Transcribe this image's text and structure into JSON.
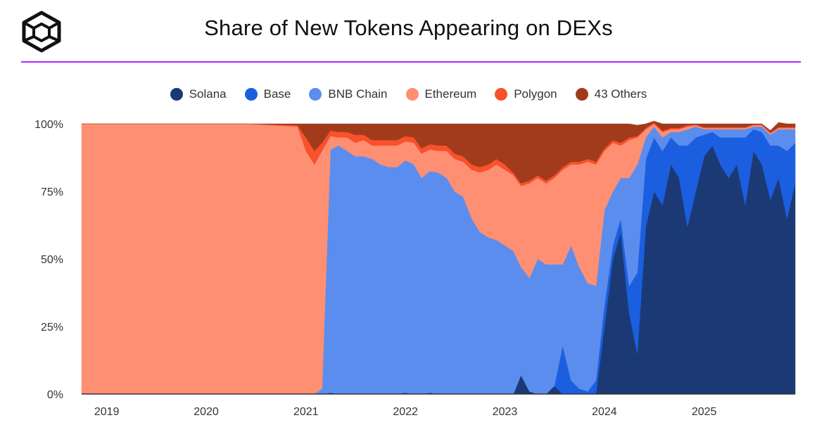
{
  "title": "Share of New Tokens Appearing on DEXs",
  "icons": {
    "logo": "cube-logo-icon"
  },
  "chart_data": {
    "type": "area",
    "stacked": true,
    "normalized": true,
    "title": "Share of New Tokens Appearing on DEXs",
    "xlabel": "",
    "ylabel": "",
    "ylim": [
      0,
      100
    ],
    "y_ticks": [
      "0%",
      "25%",
      "50%",
      "75%",
      "100%"
    ],
    "x_ticks": [
      "2019",
      "2020",
      "2021",
      "2022",
      "2023",
      "2024",
      "2025"
    ],
    "legend_position": "top-center",
    "grid": false,
    "x": [
      "2018-10",
      "2019-01",
      "2019-06",
      "2020-01",
      "2020-06",
      "2020-12",
      "2021-01",
      "2021-02",
      "2021-03",
      "2021-04",
      "2021-05",
      "2021-06",
      "2021-07",
      "2021-08",
      "2021-09",
      "2021-10",
      "2021-11",
      "2021-12",
      "2022-01",
      "2022-02",
      "2022-03",
      "2022-04",
      "2022-05",
      "2022-06",
      "2022-07",
      "2022-08",
      "2022-09",
      "2022-10",
      "2022-11",
      "2022-12",
      "2023-01",
      "2023-02",
      "2023-03",
      "2023-04",
      "2023-05",
      "2023-06",
      "2023-07",
      "2023-08",
      "2023-09",
      "2023-10",
      "2023-11",
      "2023-12",
      "2024-01",
      "2024-02",
      "2024-03",
      "2024-04",
      "2024-05",
      "2024-06",
      "2024-07",
      "2024-08",
      "2024-09",
      "2024-10",
      "2024-11",
      "2024-12",
      "2025-01",
      "2025-02",
      "2025-03",
      "2025-04",
      "2025-05",
      "2025-06",
      "2025-07",
      "2025-08",
      "2025-09",
      "2025-10",
      "2025-11",
      "2025-12"
    ],
    "series": [
      {
        "name": "Solana",
        "color": "#1b3a75",
        "values": [
          0,
          0,
          0,
          0,
          0,
          0,
          0,
          0,
          0,
          0.5,
          0,
          0,
          0,
          0,
          0,
          0,
          0,
          0,
          0.5,
          0,
          0,
          0.5,
          0,
          0,
          0,
          0,
          0,
          0,
          0,
          0,
          0,
          0,
          7,
          1,
          0,
          0,
          3,
          0,
          0,
          0,
          0,
          0,
          25,
          50,
          60,
          30,
          15,
          62,
          75,
          70,
          85,
          80,
          62,
          75,
          88,
          92,
          85,
          80,
          85,
          70,
          90,
          85,
          72,
          80,
          65,
          78
        ]
      },
      {
        "name": "Base",
        "color": "#1b5fe0",
        "values": [
          0,
          0,
          0,
          0,
          0,
          0,
          0,
          0,
          0,
          0,
          0,
          0,
          0,
          0,
          0,
          0,
          0,
          0,
          0,
          0,
          0,
          0,
          0,
          0,
          0,
          0,
          0,
          0,
          0,
          0,
          0,
          0,
          0,
          0,
          0,
          0,
          0,
          18,
          5,
          2,
          1,
          5,
          8,
          5,
          5,
          10,
          30,
          25,
          20,
          20,
          10,
          12,
          30,
          20,
          8,
          5,
          10,
          15,
          10,
          25,
          8,
          12,
          20,
          12,
          25,
          15
        ]
      },
      {
        "name": "BNB Chain",
        "color": "#5b8def",
        "values": [
          0,
          0,
          0,
          0,
          0,
          0,
          0,
          0,
          2,
          90,
          92,
          90,
          88,
          88,
          87,
          85,
          84,
          84,
          86,
          85,
          80,
          82,
          82,
          80,
          75,
          73,
          65,
          60,
          58,
          57,
          55,
          53,
          40,
          42,
          50,
          48,
          45,
          30,
          50,
          45,
          40,
          35,
          35,
          20,
          15,
          40,
          40,
          8,
          4,
          5,
          2,
          5,
          6,
          4,
          2,
          1,
          3,
          3,
          3,
          3,
          1,
          2,
          4,
          6,
          8,
          5
        ]
      },
      {
        "name": "Ethereum",
        "color": "#ff8f73",
        "values": [
          100,
          100,
          100,
          100,
          100,
          99,
          90,
          85,
          88,
          5,
          3,
          5,
          5,
          6,
          5,
          7,
          8,
          8,
          7,
          8,
          9,
          8,
          8,
          10,
          12,
          13,
          18,
          22,
          25,
          28,
          28,
          28,
          30,
          35,
          30,
          30,
          32,
          35,
          30,
          38,
          45,
          45,
          22,
          18,
          12,
          14,
          10,
          3,
          1,
          2,
          1,
          1,
          1,
          0.5,
          0.5,
          0.5,
          0.5,
          0.5,
          0.5,
          0.5,
          0.5,
          0.5,
          0.5,
          0.5,
          0.5,
          0.5
        ]
      },
      {
        "name": "Polygon",
        "color": "#f8512b",
        "values": [
          0,
          0,
          0,
          0,
          0,
          0.5,
          5,
          5,
          3,
          2,
          2,
          2,
          3,
          2,
          2,
          2,
          2,
          2,
          2,
          2,
          2,
          2,
          2,
          2,
          2,
          2,
          2,
          2,
          2,
          2,
          2,
          1,
          1,
          1,
          1,
          1,
          1,
          1,
          1,
          1,
          1,
          1,
          1,
          1,
          1,
          1,
          0.5,
          0.5,
          0.5,
          0.5,
          0.5,
          0.5,
          0.5,
          0.3,
          0.3,
          0.3,
          0.3,
          0.3,
          0.3,
          0.3,
          0.3,
          0.3,
          0.3,
          0.3,
          0.3,
          0.3
        ]
      },
      {
        "name": "43 Others",
        "color": "#a13b1c",
        "values": [
          0,
          0,
          0,
          0,
          0,
          0.5,
          5,
          10,
          7,
          2.5,
          3,
          3,
          4,
          4,
          6,
          6,
          6,
          6,
          4.5,
          5,
          9,
          7.5,
          8,
          8,
          11,
          12,
          15,
          16,
          15,
          13,
          15,
          18,
          22,
          21,
          19,
          21,
          19,
          16,
          14,
          14,
          13,
          14,
          9,
          6,
          7,
          5,
          4,
          1.5,
          0.5,
          2.5,
          1.5,
          1.5,
          0.5,
          0.2,
          1.2,
          1.2,
          1.2,
          1.2,
          1.2,
          1.2,
          0.2,
          0.2,
          0.7,
          1.7,
          1.2,
          1.2
        ]
      }
    ]
  }
}
